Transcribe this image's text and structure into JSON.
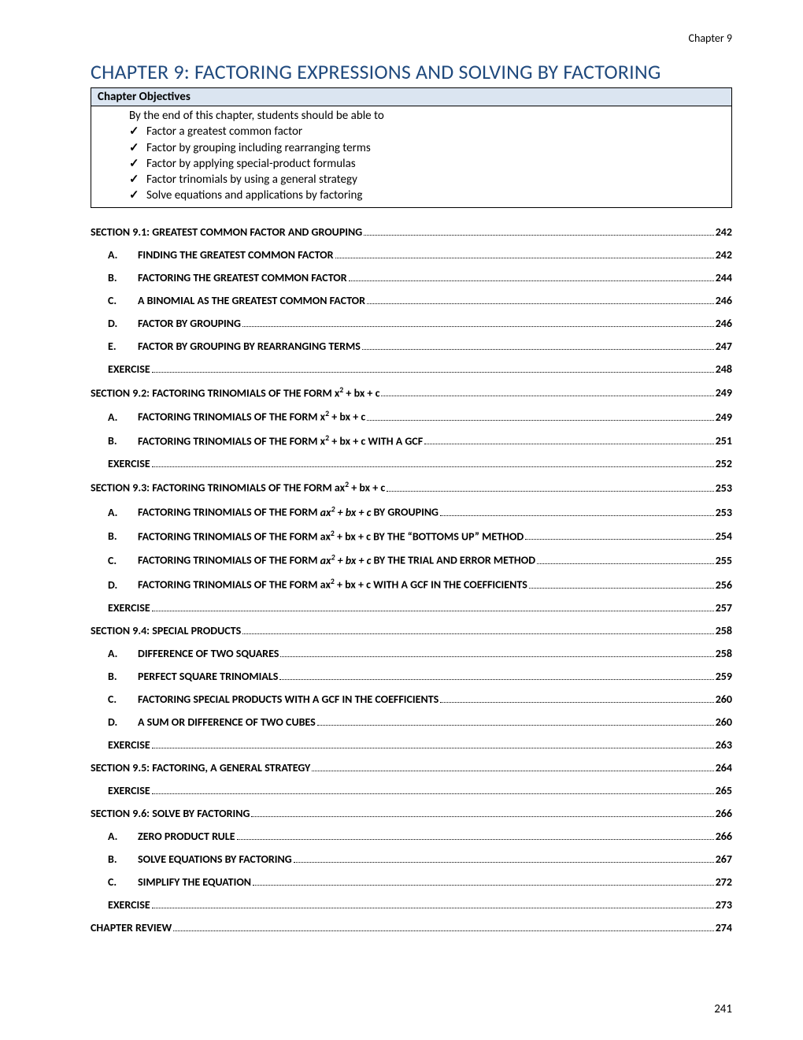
{
  "header_label": "Chapter 9",
  "chapter_title": "CHAPTER 9: FACTORING EXPRESSIONS AND SOLVING BY FACTORING",
  "objectives": {
    "header": "Chapter Objectives",
    "intro": "By the end of this chapter, students should be able to",
    "items": [
      "Factor a greatest common factor",
      "Factor by grouping including rearranging terms",
      "Factor by applying special-product formulas",
      "Factor trinomials by using a general strategy",
      "Solve equations and applications by factoring"
    ]
  },
  "toc": [
    {
      "level": "section",
      "letter": "",
      "html": "SECTION 9.1: GREATEST COMMON FACTOR AND GROUPING",
      "page": "242"
    },
    {
      "level": "subsub",
      "letter": "A.",
      "html": "FINDING THE GREATEST COMMON FACTOR",
      "page": "242"
    },
    {
      "level": "subsub",
      "letter": "B.",
      "html": "FACTORING THE GREATEST COMMON FACTOR",
      "page": "244"
    },
    {
      "level": "subsub",
      "letter": "C.",
      "html": "A BINOMIAL AS THE GREATEST COMMON FACTOR",
      "page": "246"
    },
    {
      "level": "subsub",
      "letter": "D.",
      "html": "FACTOR BY GROUPING",
      "page": "246"
    },
    {
      "level": "subsub",
      "letter": "E.",
      "html": "FACTOR BY GROUPING BY REARRANGING TERMS",
      "page": "247"
    },
    {
      "level": "sub",
      "letter": "",
      "html": "EXERCISE",
      "page": "248"
    },
    {
      "level": "section",
      "letter": "",
      "html": "SECTION 9.2: FACTORING TRINOMIALS OF THE FORM x<sup>2</sup> + bx + c",
      "page": "249"
    },
    {
      "level": "subsub",
      "letter": "A.",
      "html": "FACTORING TRINOMIALS OF THE FORM x<sup>2</sup> + bx + c",
      "page": "249"
    },
    {
      "level": "subsub",
      "letter": "B.",
      "html": "FACTORING TRINOMIALS OF THE FORM x<sup>2</sup> + bx + c WITH A GCF",
      "page": "251"
    },
    {
      "level": "sub",
      "letter": "",
      "html": "EXERCISE",
      "page": "252"
    },
    {
      "level": "section",
      "letter": "",
      "html": "SECTION 9.3: FACTORING TRINOMIALS OF THE FORM ax<sup>2</sup> + bx + c",
      "page": "253"
    },
    {
      "level": "subsub",
      "letter": "A.",
      "html": "FACTORING TRINOMIALS OF THE FORM <span class=\"ital\">ax<sup>2</sup> + bx + c</span> BY GROUPING",
      "page": "253"
    },
    {
      "level": "subsub",
      "letter": "B.",
      "html": "FACTORING TRINOMIALS OF THE FORM ax<sup>2</sup> + bx + c BY THE “BOTTOMS UP” METHOD",
      "page": "254"
    },
    {
      "level": "subsub",
      "letter": "C.",
      "html": "FACTORING TRINOMIALS OF THE FORM <span class=\"ital\">ax<sup>2</sup> + bx + c</span> BY THE TRIAL AND ERROR METHOD",
      "page": "255"
    },
    {
      "level": "subsub",
      "letter": "D.",
      "html": "FACTORING TRINOMIALS OF THE FORM ax<sup>2</sup> + bx + c WITH A GCF IN THE COEFFICIENTS",
      "page": "256"
    },
    {
      "level": "sub",
      "letter": "",
      "html": "EXERCISE",
      "page": "257"
    },
    {
      "level": "section",
      "letter": "",
      "html": "SECTION 9.4: SPECIAL PRODUCTS",
      "page": "258"
    },
    {
      "level": "subsub",
      "letter": "A.",
      "html": "DIFFERENCE OF TWO SQUARES",
      "page": "258"
    },
    {
      "level": "subsub",
      "letter": "B.",
      "html": "PERFECT SQUARE TRINOMIALS",
      "page": "259"
    },
    {
      "level": "subsub",
      "letter": "C.",
      "html": "FACTORING SPECIAL PRODUCTS WITH A GCF IN THE COEFFICIENTS",
      "page": "260"
    },
    {
      "level": "subsub",
      "letter": "D.",
      "html": "A SUM OR DIFFERENCE OF TWO CUBES",
      "page": "260"
    },
    {
      "level": "sub",
      "letter": "",
      "html": "EXERCISE",
      "page": "263"
    },
    {
      "level": "section",
      "letter": "",
      "html": "SECTION 9.5: FACTORING, A GENERAL STRATEGY",
      "page": "264"
    },
    {
      "level": "sub",
      "letter": "",
      "html": "EXERCISE",
      "page": "265"
    },
    {
      "level": "section",
      "letter": "",
      "html": "SECTION 9.6: SOLVE BY FACTORING",
      "page": "266"
    },
    {
      "level": "subsub",
      "letter": "A.",
      "html": "ZERO PRODUCT RULE",
      "page": "266"
    },
    {
      "level": "subsub",
      "letter": "B.",
      "html": "SOLVE EQUATIONS BY FACTORING",
      "page": "267"
    },
    {
      "level": "subsub",
      "letter": "C.",
      "html": "SIMPLIFY THE EQUATION",
      "page": "272"
    },
    {
      "level": "sub",
      "letter": "",
      "html": "EXERCISE",
      "page": "273"
    },
    {
      "level": "section",
      "letter": "",
      "html": "CHAPTER REVIEW",
      "page": "274"
    }
  ],
  "page_number": "241"
}
